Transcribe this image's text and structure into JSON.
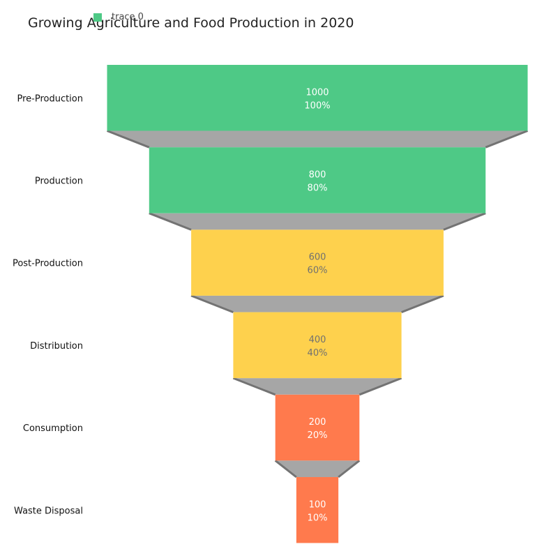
{
  "chart_data": {
    "type": "funnel",
    "title": "Growing Agriculture and Food Production in 2020",
    "legend": {
      "entries": [
        "trace 0"
      ],
      "placement": "top-left"
    },
    "categories": [
      "Pre-Production",
      "Production",
      "Post-Production",
      "Distribution",
      "Consumption",
      "Waste Disposal"
    ],
    "values": [
      1000,
      800,
      600,
      400,
      200,
      100
    ],
    "percent_labels": [
      "100%",
      "80%",
      "60%",
      "40%",
      "20%",
      "10%"
    ],
    "colors": [
      "#4ec986",
      "#4ec986",
      "#fed14d",
      "#fed14d",
      "#ff7a4d",
      "#ff7a4d"
    ],
    "text_colors": [
      "#ffffff",
      "#ffffff",
      "#707070",
      "#707070",
      "#ffffff",
      "#ffffff"
    ],
    "connector_color": "#a6a6a6",
    "connector_line_color": "#737373",
    "legend_color": "#4ec986"
  }
}
